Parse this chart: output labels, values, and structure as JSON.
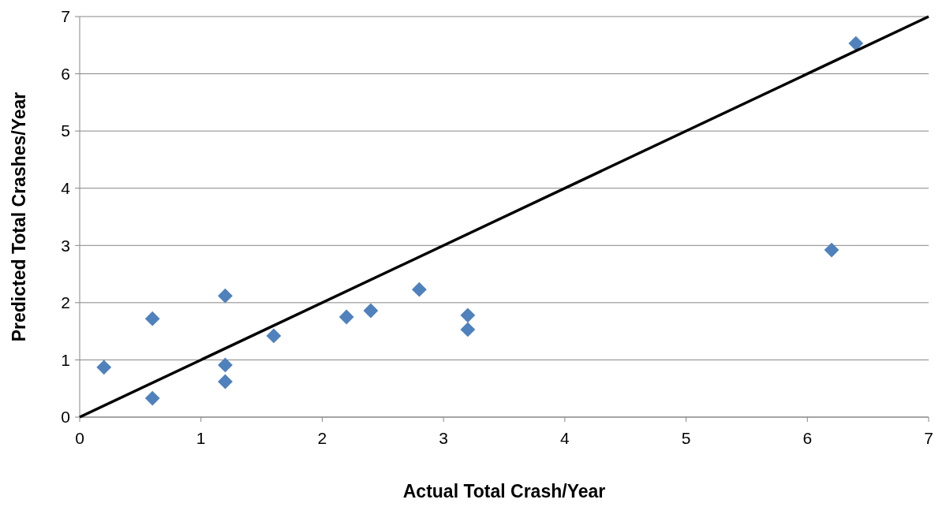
{
  "chart_data": {
    "type": "scatter",
    "xlabel": "Actual Total Crash/Year",
    "ylabel": "Predicted Total Crashes/Year",
    "xlim": [
      0,
      7
    ],
    "xticks": [
      0,
      1,
      2,
      3,
      4,
      5,
      6,
      7
    ],
    "ylim": [
      0,
      7
    ],
    "yticks": [
      0,
      1,
      2,
      3,
      4,
      5,
      6,
      7
    ],
    "grid": "y",
    "marker": "diamond",
    "series": [
      {
        "color": "#4f81bd",
        "x": [
          0.2,
          0.6,
          0.6,
          1.2,
          1.2,
          1.2,
          1.6,
          2.2,
          2.4,
          2.8,
          3.2,
          3.2,
          6.2,
          6.4
        ],
        "values": [
          0.87,
          1.72,
          0.33,
          2.12,
          0.91,
          0.62,
          1.42,
          1.75,
          1.86,
          2.23,
          1.78,
          1.53,
          2.92,
          6.53
        ]
      },
      {
        "type": "line",
        "color": "#000000",
        "marker": "none",
        "line_style": "solid",
        "x": [
          0,
          7
        ],
        "values": [
          0,
          7
        ]
      }
    ]
  }
}
